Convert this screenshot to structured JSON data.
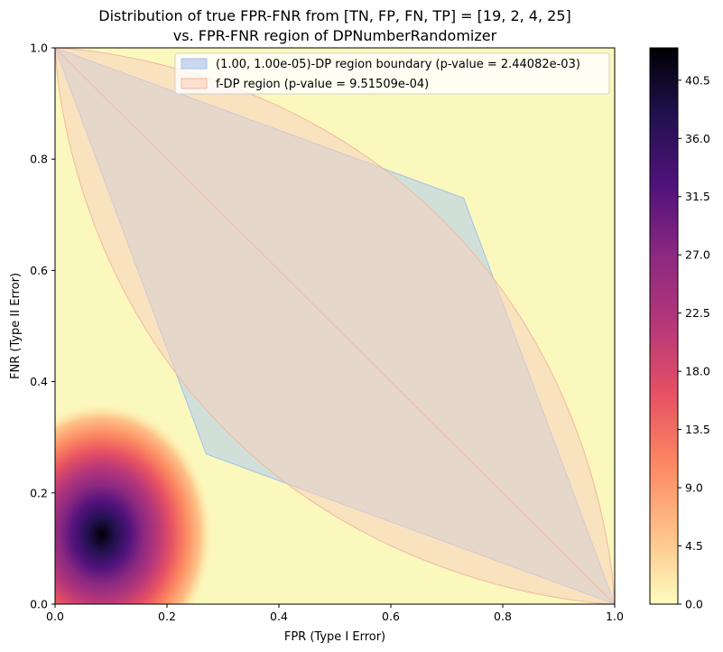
{
  "chart_data": {
    "type": "heatmap",
    "title_line1": "Distribution of true FPR-FNR from [TN, FP, FN, TP] = [19, 2, 4, 25]",
    "title_line2": "vs. FPR-FNR region of DPNumberRandomizer",
    "xlabel": "FPR (Type I Error)",
    "ylabel": "FNR (Type II Error)",
    "xlim": [
      0,
      1
    ],
    "ylim": [
      0,
      1
    ],
    "x_ticks": [
      "0.0",
      "0.2",
      "0.4",
      "0.6",
      "0.8",
      "1.0"
    ],
    "y_ticks": [
      "0.0",
      "0.2",
      "0.4",
      "0.6",
      "0.8",
      "1.0"
    ],
    "x_tick_values": [
      0,
      0.2,
      0.4,
      0.6,
      0.8,
      1.0
    ],
    "y_tick_values": [
      0,
      0.2,
      0.4,
      0.6,
      0.8,
      1.0
    ],
    "legend_position": "upper right",
    "legend": [
      {
        "label": "(1.00, 1.00e-05)-DP region boundary (p-value = 2.44082e-03)",
        "fill": "#c9d8f0",
        "edge": "#a6bfe6"
      },
      {
        "label": "f-DP region (p-value = 9.51509e-04)",
        "fill": "#fbe0d0",
        "edge": "#f0b8a0"
      }
    ],
    "background_color": "#fbf8bd",
    "density_peak": {
      "x": 0.083,
      "y": 0.125
    },
    "dp_region": [
      [
        0,
        1
      ],
      [
        0.27,
        0.27
      ],
      [
        1,
        0
      ],
      [
        0.73,
        0.73
      ]
    ],
    "fdp_region_parameter_mu": 1.0,
    "colorbar": {
      "colormap": "magma_r",
      "min": 0.0,
      "max": 43.0,
      "ticks": [
        "0.0",
        "4.5",
        "9.0",
        "13.5",
        "18.0",
        "22.5",
        "27.0",
        "31.5",
        "36.0",
        "40.5"
      ],
      "tick_values": [
        0,
        4.5,
        9,
        13.5,
        18,
        22.5,
        27,
        31.5,
        36,
        40.5
      ],
      "stops": [
        "#fcfdbf",
        "#fec287",
        "#fc8961",
        "#e75263",
        "#b73779",
        "#8c2981",
        "#51127c",
        "#221150",
        "#000004"
      ]
    }
  }
}
